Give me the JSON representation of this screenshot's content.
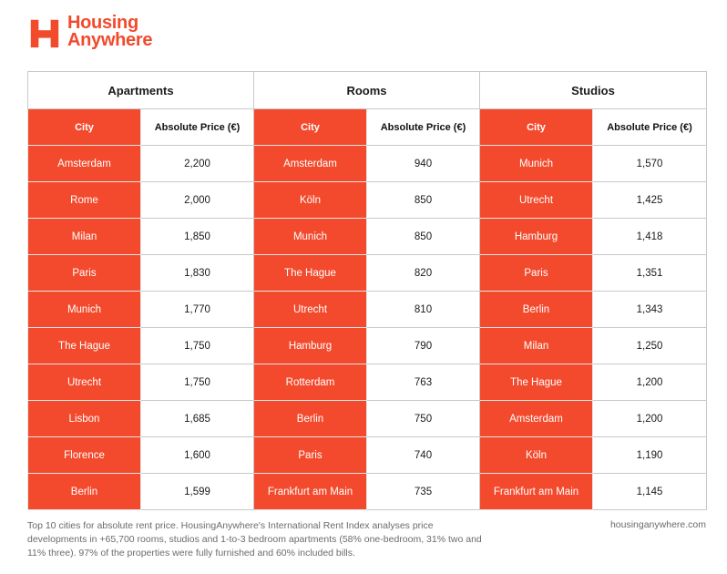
{
  "brand": {
    "line1": "Housing",
    "line2": "Anywhere",
    "accent_color": "#f34a2d"
  },
  "table": {
    "groups": [
      "Apartments",
      "Rooms",
      "Studios"
    ],
    "city_header": "City",
    "price_header": "Absolute Price (€)",
    "apartments": [
      {
        "city": "Amsterdam",
        "price": "2,200"
      },
      {
        "city": "Rome",
        "price": "2,000"
      },
      {
        "city": "Milan",
        "price": "1,850"
      },
      {
        "city": "Paris",
        "price": "1,830"
      },
      {
        "city": "Munich",
        "price": "1,770"
      },
      {
        "city": "The Hague",
        "price": "1,750"
      },
      {
        "city": "Utrecht",
        "price": "1,750"
      },
      {
        "city": "Lisbon",
        "price": "1,685"
      },
      {
        "city": "Florence",
        "price": "1,600"
      },
      {
        "city": "Berlin",
        "price": "1,599"
      }
    ],
    "rooms": [
      {
        "city": "Amsterdam",
        "price": "940"
      },
      {
        "city": "Köln",
        "price": "850"
      },
      {
        "city": "Munich",
        "price": "850"
      },
      {
        "city": "The Hague",
        "price": "820"
      },
      {
        "city": "Utrecht",
        "price": "810"
      },
      {
        "city": "Hamburg",
        "price": "790"
      },
      {
        "city": "Rotterdam",
        "price": "763"
      },
      {
        "city": "Berlin",
        "price": "750"
      },
      {
        "city": "Paris",
        "price": "740"
      },
      {
        "city": "Frankfurt am Main",
        "price": "735"
      }
    ],
    "studios": [
      {
        "city": "Munich",
        "price": "1,570"
      },
      {
        "city": "Utrecht",
        "price": "1,425"
      },
      {
        "city": "Hamburg",
        "price": "1,418"
      },
      {
        "city": "Paris",
        "price": "1,351"
      },
      {
        "city": "Berlin",
        "price": "1,343"
      },
      {
        "city": "Milan",
        "price": "1,250"
      },
      {
        "city": "The Hague",
        "price": "1,200"
      },
      {
        "city": "Amsterdam",
        "price": "1,200"
      },
      {
        "city": "Köln",
        "price": "1,190"
      },
      {
        "city": "Frankfurt am Main",
        "price": "1,145"
      }
    ]
  },
  "footer": {
    "note": "Top 10 cities for absolute rent price. HousingAnywhere's International Rent Index analyses price developments in +65,700 rooms, studios and 1-to-3 bedroom apartments (58% one-bedroom, 31% two and 11% three). 97% of the properties were fully furnished and 60% included bills.",
    "url": "housinganywhere.com"
  }
}
